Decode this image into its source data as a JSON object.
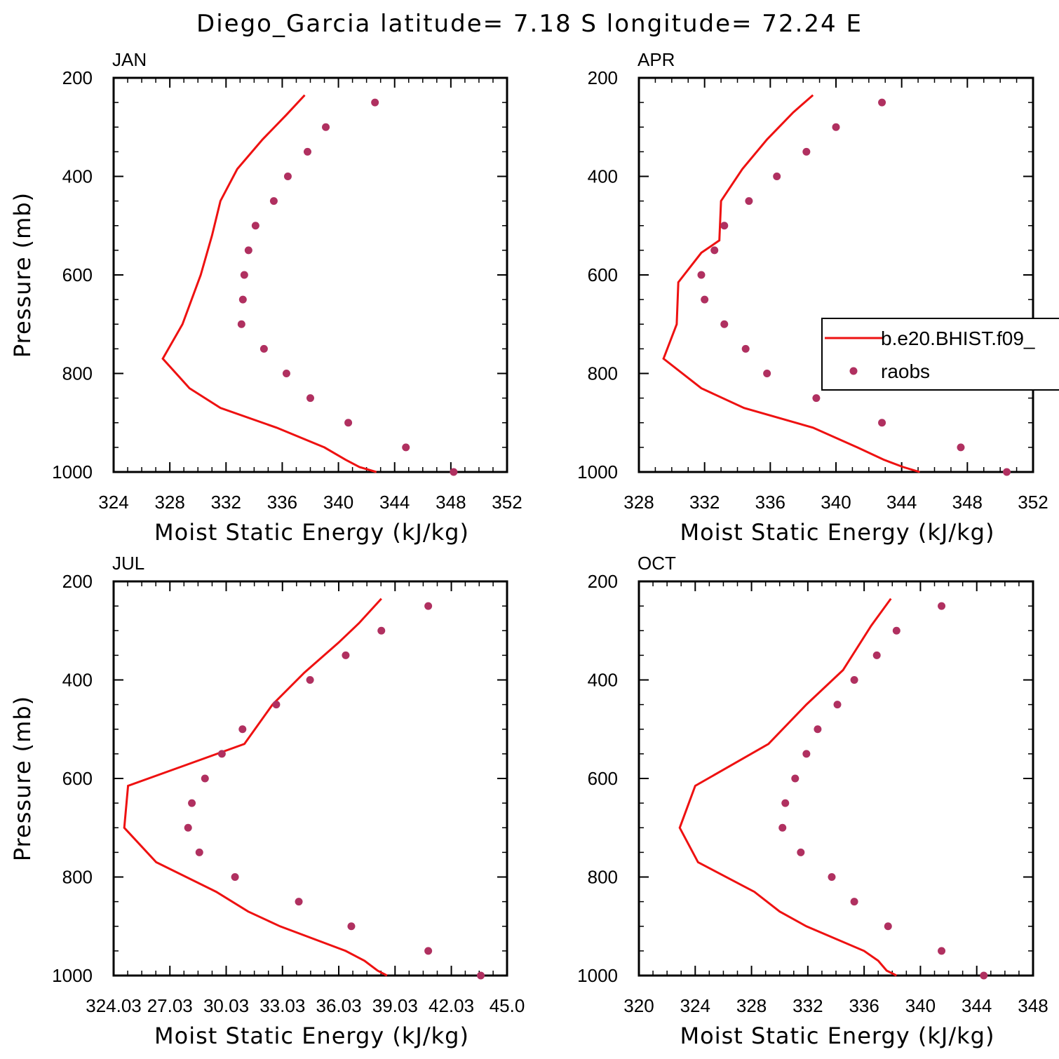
{
  "title": "Diego_Garcia  latitude= 7.18 S longitude= 72.24 E",
  "colors": {
    "model": "#ee1111",
    "obs": "#b03060",
    "axis": "#000000"
  },
  "legend": {
    "model_label": "b.e20.BHIST.f09_",
    "obs_label": "raobs"
  },
  "chart_data": [
    {
      "type": "line",
      "panel": "JAN",
      "xlabel": "Moist Static Energy (kJ/kg)",
      "ylabel": "Pressure (mb)",
      "xlim": [
        324,
        352
      ],
      "xticks": [
        324,
        328,
        332,
        336,
        340,
        344,
        348,
        352
      ],
      "xtick_labels": [
        "324",
        "328",
        "332",
        "336",
        "340",
        "344",
        "348",
        "352"
      ],
      "ylim": [
        200,
        1000
      ],
      "yticks": [
        200,
        400,
        600,
        800,
        1000
      ],
      "ytick_labels": [
        "200",
        "400",
        "600",
        "800",
        "1000"
      ],
      "model": {
        "pressure": [
          235,
          275,
          325,
          385,
          450,
          520,
          600,
          700,
          770,
          830,
          870,
          910,
          950,
          975,
          990,
          1000
        ],
        "mse": [
          337.6,
          336.3,
          334.6,
          332.8,
          331.6,
          331.0,
          330.2,
          328.9,
          327.5,
          329.4,
          331.6,
          335.6,
          339.0,
          340.5,
          341.5,
          342.7
        ]
      },
      "obs": {
        "pressure": [
          250,
          300,
          350,
          400,
          450,
          500,
          550,
          600,
          650,
          700,
          750,
          800,
          850,
          900,
          950,
          1000
        ],
        "mse": [
          342.6,
          339.1,
          337.8,
          336.4,
          335.4,
          334.1,
          333.6,
          333.3,
          333.2,
          333.1,
          334.7,
          336.3,
          338.0,
          340.7,
          344.8,
          348.2
        ]
      }
    },
    {
      "type": "line",
      "panel": "APR",
      "xlabel": "Moist Static Energy (kJ/kg)",
      "ylabel": "",
      "xlim": [
        328,
        352
      ],
      "xticks": [
        328,
        332,
        336,
        340,
        344,
        348,
        352
      ],
      "xtick_labels": [
        "328",
        "332",
        "336",
        "340",
        "344",
        "348",
        "352"
      ],
      "ylim": [
        200,
        1000
      ],
      "yticks": [
        200,
        400,
        600,
        800,
        1000
      ],
      "ytick_labels": [
        "200",
        "400",
        "600",
        "800",
        "1000"
      ],
      "model": {
        "pressure": [
          235,
          270,
          325,
          385,
          450,
          530,
          555,
          615,
          700,
          770,
          830,
          870,
          910,
          950,
          975,
          990,
          1000
        ],
        "mse": [
          338.6,
          337.4,
          335.8,
          334.3,
          333.0,
          332.9,
          331.8,
          330.4,
          330.3,
          329.5,
          331.8,
          334.4,
          338.6,
          341.3,
          342.9,
          344.1,
          345.1
        ]
      },
      "obs": {
        "pressure": [
          250,
          300,
          350,
          400,
          450,
          500,
          550,
          600,
          650,
          700,
          750,
          800,
          850,
          900,
          950,
          1000
        ],
        "mse": [
          342.8,
          340.0,
          338.2,
          336.4,
          334.7,
          333.2,
          332.6,
          331.8,
          332.0,
          333.2,
          334.5,
          335.8,
          338.8,
          342.8,
          347.6,
          350.4
        ]
      }
    },
    {
      "type": "line",
      "panel": "JUL",
      "xlabel": "Moist Static Energy (kJ/kg)",
      "ylabel": "Pressure (mb)",
      "xlim": [
        324.03,
        345.0
      ],
      "xticks": [
        324.03,
        327.03,
        330.03,
        333.03,
        336.03,
        339.03,
        342.03,
        345.0
      ],
      "xtick_labels": [
        "324.03",
        "27.03",
        "30.03",
        "33.03",
        "36.03",
        "39.03",
        "42.03",
        "45.0"
      ],
      "ylim": [
        200,
        1000
      ],
      "yticks": [
        200,
        400,
        600,
        800,
        1000
      ],
      "ytick_labels": [
        "200",
        "400",
        "600",
        "800",
        "1000"
      ],
      "model": {
        "pressure": [
          235,
          285,
          325,
          385,
          450,
          530,
          615,
          700,
          770,
          830,
          870,
          900,
          950,
          970,
          990,
          1000
        ],
        "mse": [
          338.3,
          337.1,
          336.0,
          334.2,
          332.5,
          331.0,
          324.8,
          324.6,
          326.3,
          329.5,
          331.2,
          332.9,
          336.4,
          337.4,
          338.1,
          338.6
        ]
      },
      "obs": {
        "pressure": [
          250,
          300,
          350,
          400,
          450,
          500,
          550,
          600,
          650,
          700,
          750,
          800,
          850,
          900,
          950,
          1000
        ],
        "mse": [
          340.8,
          338.3,
          336.4,
          334.5,
          332.7,
          330.9,
          329.8,
          328.9,
          328.2,
          328.0,
          328.6,
          330.5,
          333.9,
          336.7,
          340.8,
          343.6
        ]
      }
    },
    {
      "type": "line",
      "panel": "OCT",
      "xlabel": "Moist Static Energy (kJ/kg)",
      "ylabel": "",
      "xlim": [
        320,
        348
      ],
      "xticks": [
        320,
        324,
        328,
        332,
        336,
        340,
        344,
        348
      ],
      "xtick_labels": [
        "320",
        "324",
        "328",
        "332",
        "336",
        "340",
        "344",
        "348"
      ],
      "ylim": [
        200,
        1000
      ],
      "yticks": [
        200,
        400,
        600,
        800,
        1000
      ],
      "ytick_labels": [
        "200",
        "400",
        "600",
        "800",
        "1000"
      ],
      "model": {
        "pressure": [
          235,
          290,
          380,
          450,
          530,
          615,
          700,
          770,
          830,
          870,
          900,
          950,
          970,
          990,
          1000
        ],
        "mse": [
          337.9,
          336.5,
          334.5,
          331.9,
          329.2,
          324.0,
          322.9,
          324.2,
          328.2,
          330.0,
          331.9,
          336.0,
          337.0,
          337.6,
          338.3
        ]
      },
      "obs": {
        "pressure": [
          250,
          300,
          350,
          400,
          450,
          500,
          550,
          600,
          650,
          700,
          750,
          800,
          850,
          900,
          950,
          1000
        ],
        "mse": [
          341.5,
          338.3,
          336.9,
          335.3,
          334.1,
          332.7,
          331.9,
          331.1,
          330.4,
          330.2,
          331.5,
          333.7,
          335.3,
          337.7,
          341.5,
          344.5
        ]
      }
    }
  ]
}
